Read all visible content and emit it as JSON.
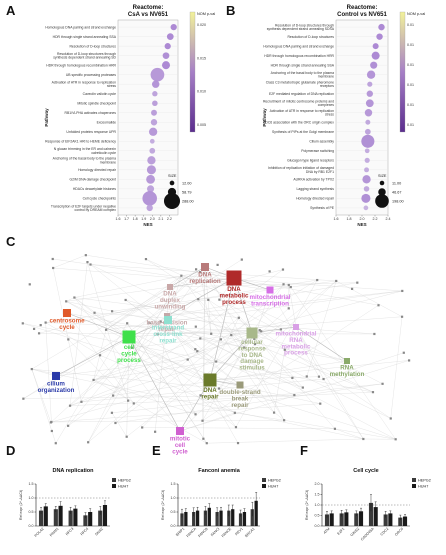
{
  "figure_labels": {
    "a": "A",
    "b": "B",
    "c": "C",
    "d": "D",
    "e": "E",
    "f": "F"
  },
  "colors": {
    "dot": "#b27fcf",
    "colorbar_low": "#5b2d8e",
    "colorbar_high": "#f2f29a",
    "hepg2": "#3a3a3a",
    "huh7": "#1a1a1a",
    "network_edge": "#c8c8c8"
  },
  "chart_data": [
    {
      "type": "scatter",
      "subtype": "dotplot",
      "title": "Reactome: CsA vs NV651",
      "xlabel": "NES",
      "ylabel": "Pathway",
      "xlim": [
        1.6,
        2.3
      ],
      "xticks": [
        "1.6",
        "1.7",
        "1.8",
        "1.9",
        "2.0",
        "2.1",
        "2.2"
      ],
      "colorbar_title": "NOM p-val",
      "colorbar_ticks": [
        "0.020",
        "0.015",
        "0.010",
        "0.005"
      ],
      "size_title": "SIZE",
      "size_levels": [
        "12.00",
        "58.79",
        "288.00"
      ],
      "categories": [
        "Homologous DNA pairing and strand exchange",
        "HDR through single strand annealing SSA",
        "Resolution of D-loop structures",
        "Resolution of D-loop structures through synthesis dependent strand annealing SD",
        "HDR through homologous recombination HRR",
        "UB specific processing proteases",
        "Activation of ATR in response to replication stress",
        "Caveolin valiotin cycle",
        "Mitotic spindle checkpoint",
        "RB1/VLPHA activates chaperones",
        "Exosomalide",
        "Unfolded proteins response UPR",
        "Response of EIF2AK1 HRI to HEME deficiency",
        "N glucan trimming in the ER and calnexin calreticulin cycle",
        "Anchoring of the basal body to the plasma membrane",
        "Homology directed repair",
        "G2/M DNA damage checkpoint",
        "HDACs deacetylate histones",
        "Cell cycle checkpoints",
        "Transcription of E2F targets under negative control by DREAM complex"
      ],
      "x": [
        2.25,
        2.21,
        2.18,
        2.16,
        2.16,
        2.06,
        2.04,
        2.03,
        2.03,
        2.02,
        2.02,
        2.01,
        2.0,
        2.0,
        1.99,
        1.99,
        1.98,
        1.98,
        1.97,
        1.97
      ],
      "size": [
        28,
        34,
        28,
        34,
        55,
        200,
        45,
        18,
        20,
        24,
        30,
        60,
        12,
        22,
        60,
        75,
        70,
        40,
        230,
        30
      ],
      "pval": [
        0.001,
        0.001,
        0.001,
        0.002,
        0.001,
        0.004,
        0.003,
        0.006,
        0.005,
        0.005,
        0.006,
        0.004,
        0.008,
        0.007,
        0.005,
        0.004,
        0.004,
        0.006,
        0.003,
        0.006
      ]
    },
    {
      "type": "scatter",
      "subtype": "dotplot",
      "title": "Reactome: Control vs NV651",
      "xlabel": "NES",
      "ylabel": "Pathway",
      "xlim": [
        1.6,
        2.4
      ],
      "xticks": [
        "1.6",
        "1.8",
        "2.0",
        "2.2",
        "2.4"
      ],
      "colorbar_title": "NOM p-val",
      "colorbar_ticks": [
        "0.01",
        "0.01",
        "0.01",
        "0.01",
        "0.01",
        "0.01"
      ],
      "size_title": "SIZE",
      "size_levels": [
        "11.00",
        "46.67",
        "198.00"
      ],
      "categories": [
        "Resolution of D-loop structures through synthesis dependent strand annealing SDSA",
        "Resolution of D-loop structures",
        "Homologous DNA pairing and strand exchange",
        "HDR through homologous recombination HRR",
        "HDR through single strand annealing SSA",
        "Anchoring of the basal body to the plasma membrane",
        "Class C3 metabotropic glutamate pheromone receptors",
        "E2F mediated regulation of DNA replication",
        "Recruitment of mitotic centrosome proteins and complexes",
        "Activation of ATR in response to replication stress",
        "CDC6 association with the ORC origin complex",
        "Synthesis of PIPs at the Golgi membrane",
        "Cilium assembly",
        "Polymerase switching",
        "Glucagon type ligand receptors",
        "Inhibition of replication initiation of damaged DNA by RB1 E2F1",
        "AURKA activation by TPX2",
        "Lagging strand synthesis",
        "Homology directed repair",
        "Synthesis of PE"
      ],
      "x": [
        2.3,
        2.27,
        2.21,
        2.21,
        2.18,
        2.14,
        2.12,
        2.12,
        2.12,
        2.1,
        2.09,
        2.09,
        2.09,
        2.08,
        2.08,
        2.07,
        2.07,
        2.07,
        2.06,
        2.06
      ],
      "size": [
        30,
        30,
        25,
        55,
        40,
        60,
        16,
        30,
        50,
        45,
        14,
        22,
        180,
        12,
        16,
        14,
        60,
        20,
        75,
        12
      ],
      "pval": [
        0.001,
        0.001,
        0.001,
        0.001,
        0.002,
        0.003,
        0.006,
        0.004,
        0.003,
        0.004,
        0.007,
        0.006,
        0.002,
        0.008,
        0.008,
        0.008,
        0.003,
        0.007,
        0.002,
        0.009
      ]
    },
    {
      "type": "bar",
      "title": "DNA replication",
      "ylabel": "Rel expr (2^-ΔΔCt)",
      "ylim": [
        0,
        1.5
      ],
      "yticks": [
        "0.0",
        "0.5",
        "1.0",
        "1.5"
      ],
      "reference_line": 1.0,
      "categories": [
        "POLA2",
        "PRIM1",
        "RFC3",
        "RFC4",
        "DNA2"
      ],
      "series": [
        {
          "name": "HEPG2",
          "values": [
            0.55,
            0.6,
            0.55,
            0.38,
            0.55
          ],
          "errors": [
            0.12,
            0.1,
            0.12,
            0.1,
            0.15
          ]
        },
        {
          "name": "HUH7",
          "values": [
            0.7,
            0.72,
            0.62,
            0.5,
            0.75
          ],
          "errors": [
            0.1,
            0.15,
            0.1,
            0.12,
            0.15
          ]
        }
      ]
    },
    {
      "type": "bar",
      "title": "Fanconi anemia",
      "ylabel": "Rel expr (2^-ΔΔCt)",
      "ylim": [
        0,
        1.5
      ],
      "yticks": [
        "0.0",
        "0.5",
        "1.0",
        "1.5"
      ],
      "reference_line": 1.0,
      "categories": [
        "BRIP1",
        "FANCA",
        "FANCB",
        "FANCI",
        "FANCE",
        "REV1",
        "BRCA1"
      ],
      "series": [
        {
          "name": "HEPG2",
          "values": [
            0.45,
            0.5,
            0.55,
            0.5,
            0.55,
            0.45,
            0.6
          ],
          "errors": [
            0.15,
            0.15,
            0.15,
            0.15,
            0.2,
            0.12,
            0.25
          ]
        },
        {
          "name": "HUH7",
          "values": [
            0.5,
            0.55,
            0.65,
            0.55,
            0.6,
            0.5,
            0.9
          ],
          "errors": [
            0.12,
            0.12,
            0.15,
            0.12,
            0.15,
            0.12,
            0.3
          ]
        }
      ]
    },
    {
      "type": "bar",
      "title": "Cell cycle",
      "ylabel": "Rel expr (2^-ΔΔCt)",
      "ylim": [
        0,
        2.0
      ],
      "yticks": [
        "0.0",
        "0.5",
        "1.0",
        "1.5",
        "2.0"
      ],
      "reference_line": 1.0,
      "categories": [
        "ATM",
        "E2F1",
        "GINS2",
        "GADD45A",
        "CDC2",
        "ORC6"
      ],
      "series": [
        {
          "name": "HEPG2",
          "values": [
            0.55,
            0.6,
            0.6,
            1.1,
            0.55,
            0.4
          ],
          "errors": [
            0.15,
            0.15,
            0.12,
            0.4,
            0.15,
            0.12
          ]
        },
        {
          "name": "HUH7",
          "values": [
            0.6,
            0.65,
            0.7,
            0.9,
            0.6,
            0.45
          ],
          "errors": [
            0.12,
            0.12,
            0.15,
            0.25,
            0.12,
            0.1
          ]
        }
      ]
    }
  ],
  "network": {
    "clusters": [
      {
        "label": "DNA\nduplex\nunwinding",
        "color": "#c9a8a8"
      },
      {
        "label": "DNA\nreplication",
        "color": "#b87a7a"
      },
      {
        "label": "DNA\nmetabolic\nprocess",
        "color": "#b02a2a"
      },
      {
        "label": "mitochondrial\ntranscription",
        "color": "#d66ee6"
      },
      {
        "label": "base-excision\nrepair",
        "color": "#c4a8a8"
      },
      {
        "label": "centrosome\ncycle",
        "color": "#e05a2a"
      },
      {
        "label": "interstrand\ncross-link\nrepair",
        "color": "#8fe0d0"
      },
      {
        "label": "cell\ncycle\nprocess",
        "color": "#3ee04a"
      },
      {
        "label": "cellular\nresponse\nto DNA\ndamage\nstimulus",
        "color": "#a8b88a"
      },
      {
        "label": "mitochondrial\nRNA\nmetabolic\nprocess",
        "color": "#d9a0e6"
      },
      {
        "label": "cilium\norganization",
        "color": "#2a3aa8"
      },
      {
        "label": "DNA\nrepair",
        "color": "#6a7a2a"
      },
      {
        "label": "double-strand\nbreak\nrepair",
        "color": "#9a9a7a"
      },
      {
        "label": "RNA\nmethylation",
        "color": "#8aaa6a"
      },
      {
        "label": "mitotic\ncell\ncycle",
        "color": "#d060d0"
      }
    ]
  }
}
